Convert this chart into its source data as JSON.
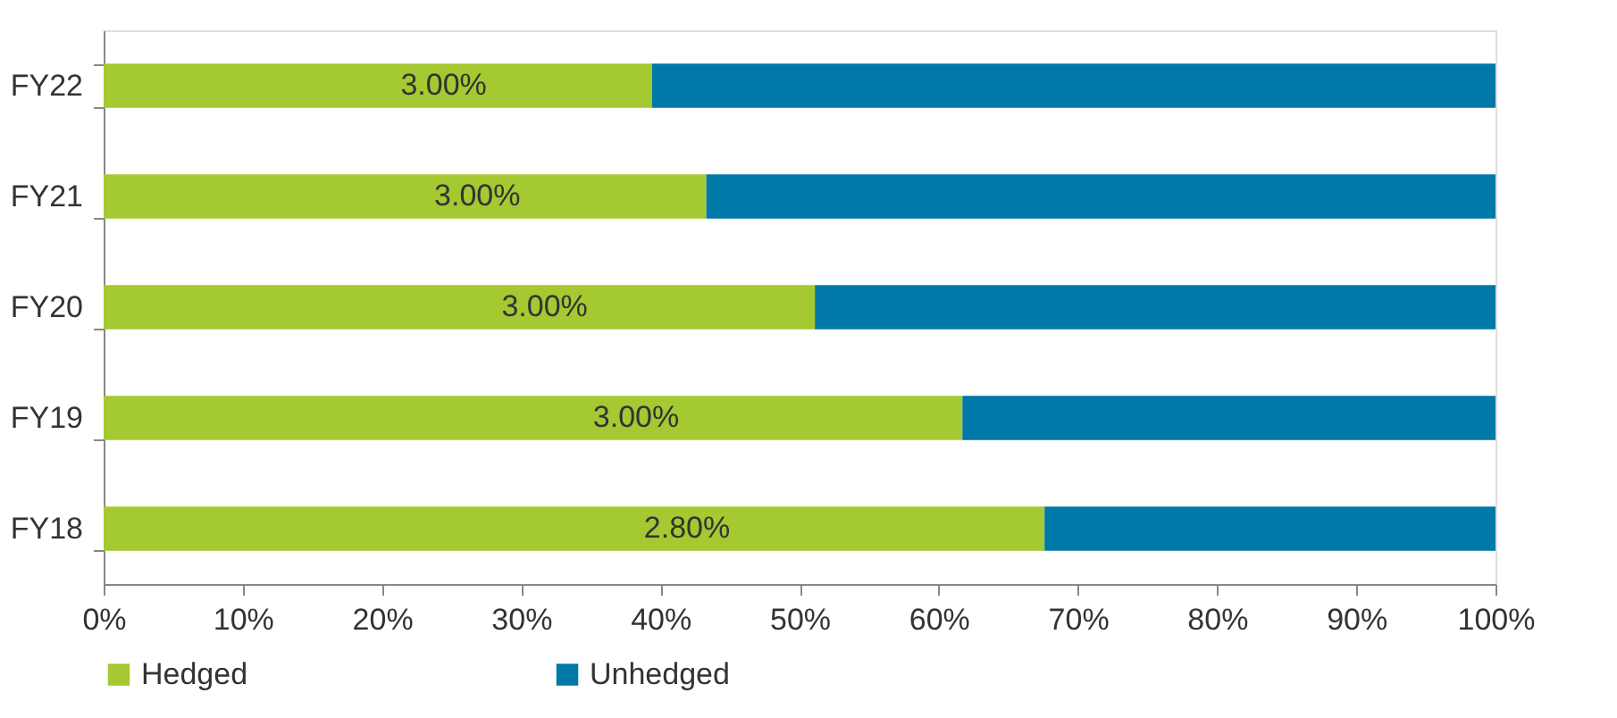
{
  "chart_data": {
    "type": "bar",
    "orientation": "horizontal",
    "stacked": true,
    "categories": [
      "FY22",
      "FY21",
      "FY20",
      "FY19",
      "FY18"
    ],
    "series": [
      {
        "name": "Hedged",
        "color": "#a4c931",
        "values": [
          39.4,
          43.3,
          51.1,
          61.7,
          67.6
        ]
      },
      {
        "name": "Unhedged",
        "color": "#0078a8",
        "values": [
          60.6,
          56.7,
          48.9,
          38.3,
          32.4
        ]
      }
    ],
    "xlim": [
      0,
      100
    ],
    "xticks": [
      {
        "value": 0,
        "label": "0%"
      },
      {
        "value": 10,
        "label": "10%"
      },
      {
        "value": 20,
        "label": "20%"
      },
      {
        "value": 30,
        "label": "30%"
      },
      {
        "value": 40,
        "label": "40%"
      },
      {
        "value": 50,
        "label": "50%"
      },
      {
        "value": 60,
        "label": "60%"
      },
      {
        "value": 70,
        "label": "70%"
      },
      {
        "value": 80,
        "label": "80%"
      },
      {
        "value": 90,
        "label": "90%"
      },
      {
        "value": 100,
        "label": "100%"
      }
    ],
    "annotations": [
      "3.00%",
      "3.00%",
      "3.00%",
      "3.00%",
      "2.80%"
    ],
    "grid": false,
    "legend": "bottom"
  }
}
